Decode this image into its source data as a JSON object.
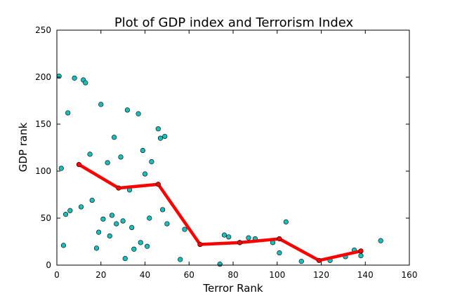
{
  "chart_data": {
    "type": "scatter",
    "title": "Plot of GDP index and Terrorism Index",
    "xlabel": "Terror Rank",
    "ylabel": "GDP rank",
    "xlim": [
      0,
      160
    ],
    "ylim": [
      0,
      250
    ],
    "xticks": [
      "0",
      "20",
      "40",
      "60",
      "80",
      "100",
      "120",
      "140",
      "160"
    ],
    "yticks": [
      "0",
      "50",
      "100",
      "150",
      "200",
      "250"
    ],
    "grid": false,
    "legend": "none",
    "colors": {
      "scatter": "#17bebb",
      "line": "#ff0000"
    },
    "series": [
      {
        "kind": "scatter",
        "points": [
          [
            1,
            201
          ],
          [
            2,
            103
          ],
          [
            3,
            21
          ],
          [
            4,
            54
          ],
          [
            5,
            162
          ],
          [
            6,
            58
          ],
          [
            8,
            199
          ],
          [
            11,
            62
          ],
          [
            12,
            197
          ],
          [
            13,
            194
          ],
          [
            15,
            118
          ],
          [
            16,
            69
          ],
          [
            18,
            18
          ],
          [
            19,
            35
          ],
          [
            20,
            171
          ],
          [
            21,
            49
          ],
          [
            23,
            109
          ],
          [
            24,
            31
          ],
          [
            25,
            53
          ],
          [
            26,
            136
          ],
          [
            27,
            44
          ],
          [
            29,
            115
          ],
          [
            30,
            47
          ],
          [
            31,
            7
          ],
          [
            32,
            165
          ],
          [
            33,
            80
          ],
          [
            34,
            40
          ],
          [
            35,
            17
          ],
          [
            37,
            161
          ],
          [
            38,
            24
          ],
          [
            39,
            122
          ],
          [
            40,
            97
          ],
          [
            41,
            20
          ],
          [
            42,
            50
          ],
          [
            43,
            110
          ],
          [
            46,
            145
          ],
          [
            47,
            135
          ],
          [
            48,
            59
          ],
          [
            49,
            137
          ],
          [
            50,
            44
          ],
          [
            56,
            6
          ],
          [
            58,
            38
          ],
          [
            74,
            1
          ],
          [
            76,
            32
          ],
          [
            78,
            30
          ],
          [
            83,
            24
          ],
          [
            87,
            29
          ],
          [
            90,
            28
          ],
          [
            98,
            24
          ],
          [
            101,
            13
          ],
          [
            104,
            46
          ],
          [
            111,
            4
          ],
          [
            124,
            5
          ],
          [
            131,
            9
          ],
          [
            135,
            16
          ],
          [
            138,
            10
          ],
          [
            147,
            26
          ]
        ]
      },
      {
        "kind": "line",
        "points": [
          [
            10,
            107
          ],
          [
            28,
            82
          ],
          [
            46,
            86
          ],
          [
            65,
            22
          ],
          [
            83,
            24
          ],
          [
            101,
            28
          ],
          [
            119,
            5
          ],
          [
            138,
            15
          ]
        ]
      }
    ]
  }
}
